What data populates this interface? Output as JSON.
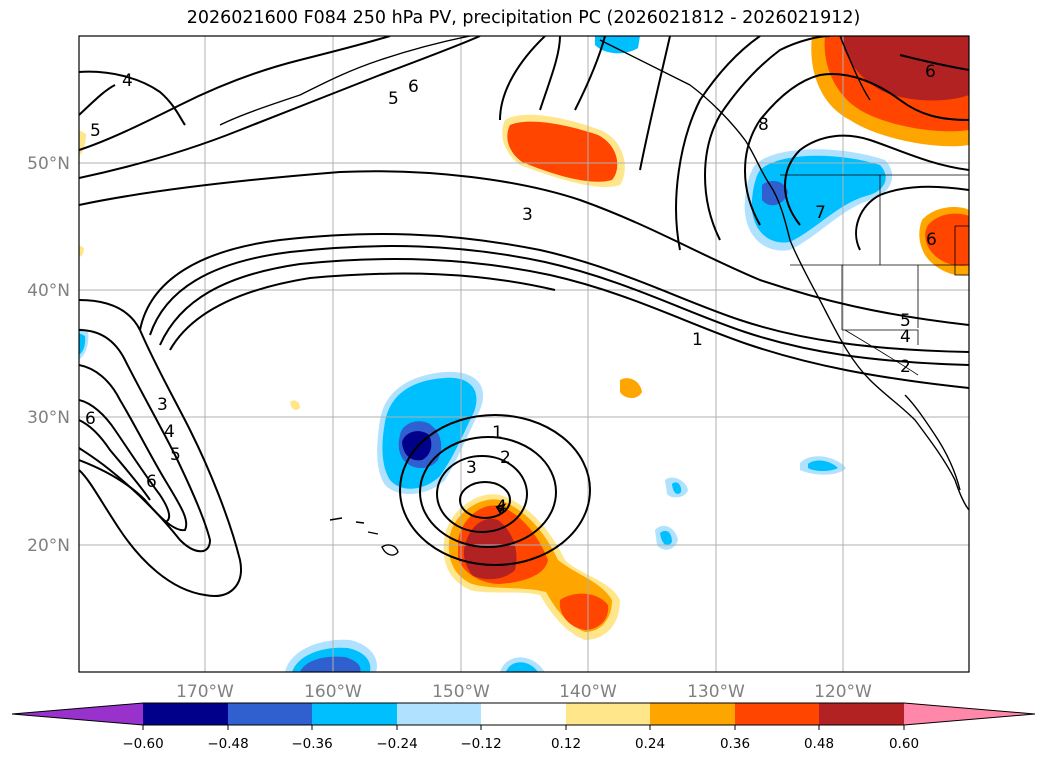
{
  "title": "2026021600 F084 250 hPa PV, precipitation PC (2026021812 - 2026021912)",
  "axes": {
    "lon_labels": [
      "170°W",
      "160°W",
      "150°W",
      "140°W",
      "130°W",
      "120°W"
    ],
    "lat_labels": [
      "50°N",
      "40°N",
      "30°N",
      "20°N"
    ]
  },
  "pv_contour_labels": [
    "4",
    "5",
    "6",
    "5",
    "8",
    "3",
    "1",
    "5",
    "4",
    "2",
    "6",
    "1",
    "2",
    "3",
    "4",
    "3",
    "4",
    "5",
    "6",
    "6",
    "7",
    "6"
  ],
  "colorbar": {
    "ticks": [
      "−0.60",
      "−0.48",
      "−0.36",
      "−0.24",
      "−0.12",
      "0.12",
      "0.24",
      "0.36",
      "0.48",
      "0.60"
    ],
    "colors": {
      "under": "#9932cc",
      "b1": "#00008b",
      "b2": "#3060cf",
      "b3": "#00bfff",
      "b4": "#b0e2ff",
      "neutral": "#ffffff",
      "r1": "#ffe68a",
      "r2": "#ffa500",
      "r3": "#ff4500",
      "r4": "#b22222",
      "over": "#ff88aa"
    }
  }
}
